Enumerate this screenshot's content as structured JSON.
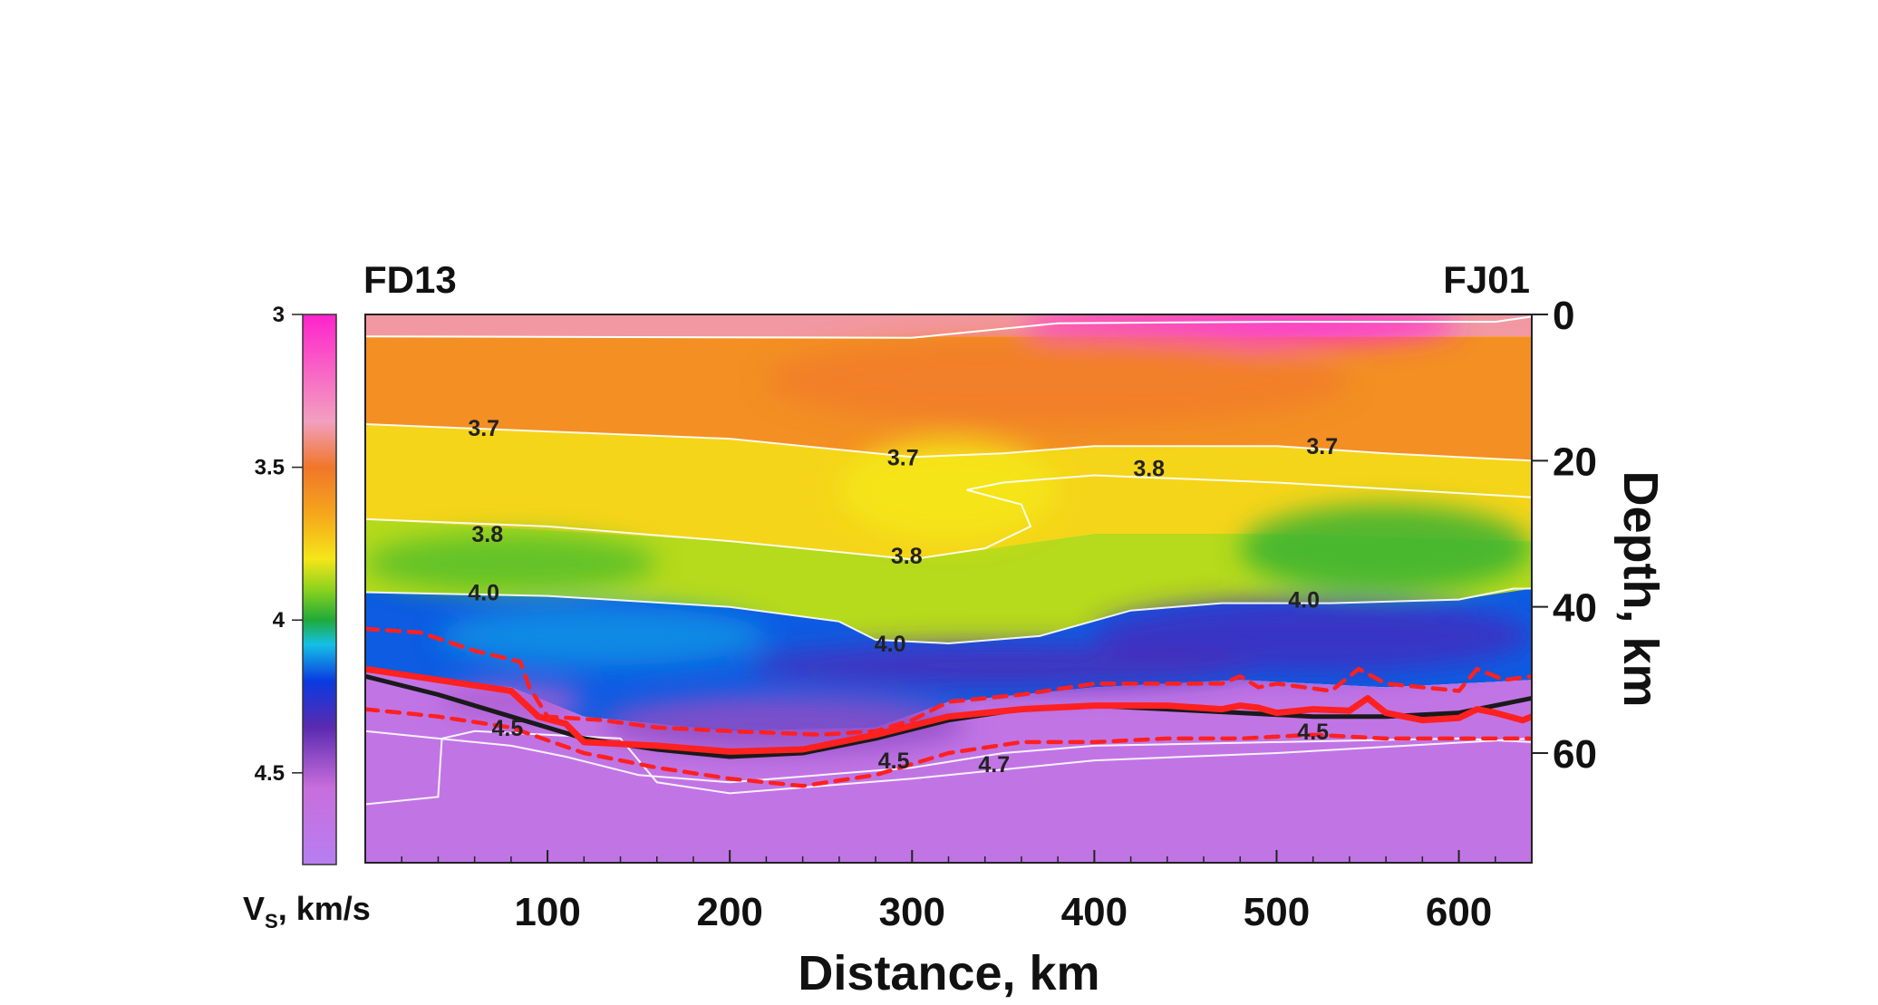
{
  "chart_data": {
    "type": "heatmap",
    "title_left": "FD13",
    "title_right": "FJ01",
    "xlabel": "Distance, km",
    "ylabel": "Depth, km",
    "colorbar_label_main": "V",
    "colorbar_label_sub": "S",
    "colorbar_label_unit": ", km/s",
    "xlim": [
      0,
      640
    ],
    "ylim": [
      0,
      75
    ],
    "x_ticks": [
      100,
      200,
      300,
      400,
      500,
      600
    ],
    "x_tick_labels": [
      "100",
      "200",
      "300",
      "400",
      "500",
      "600"
    ],
    "y_ticks": [
      0,
      20,
      40,
      60
    ],
    "y_tick_labels": [
      "0",
      "20",
      "40",
      "60"
    ],
    "colorbar_range": [
      3.0,
      4.8
    ],
    "colorbar_ticks": [
      3,
      3.5,
      4,
      4.5
    ],
    "colorbar_tick_labels": [
      "3",
      "3.5",
      "4",
      "4.5"
    ],
    "colorscale": [
      {
        "v": 3.0,
        "color": "#ff22cc"
      },
      {
        "v": 3.35,
        "color": "#f2a0c0"
      },
      {
        "v": 3.5,
        "color": "#f0762a"
      },
      {
        "v": 3.65,
        "color": "#f5a51c"
      },
      {
        "v": 3.8,
        "color": "#f5e619"
      },
      {
        "v": 3.9,
        "color": "#8cd21e"
      },
      {
        "v": 4.0,
        "color": "#1faa3a"
      },
      {
        "v": 4.08,
        "color": "#15c0e6"
      },
      {
        "v": 4.2,
        "color": "#0a3ae0"
      },
      {
        "v": 4.35,
        "color": "#5a2ab0"
      },
      {
        "v": 4.55,
        "color": "#c86edc"
      },
      {
        "v": 4.8,
        "color": "#b77ef0"
      }
    ],
    "contours": [
      {
        "value": "3.7",
        "points": [
          [
            0,
            15
          ],
          [
            100,
            16
          ],
          [
            200,
            17
          ],
          [
            300,
            19.5
          ],
          [
            350,
            19
          ],
          [
            400,
            18
          ],
          [
            450,
            18
          ],
          [
            500,
            18
          ],
          [
            560,
            19
          ],
          [
            640,
            20
          ]
        ]
      },
      {
        "value": "3.8",
        "points": [
          [
            0,
            28
          ],
          [
            100,
            29
          ],
          [
            200,
            31
          ],
          [
            300,
            33.5
          ],
          [
            340,
            32
          ],
          [
            365,
            29
          ],
          [
            360,
            26
          ],
          [
            330,
            24
          ],
          [
            350,
            23
          ],
          [
            400,
            22
          ],
          [
            500,
            23
          ],
          [
            640,
            25
          ]
        ]
      },
      {
        "value": "4.0",
        "points": [
          [
            0,
            38
          ],
          [
            100,
            38.5
          ],
          [
            200,
            40
          ],
          [
            260,
            42
          ],
          [
            280,
            44.5
          ],
          [
            320,
            45
          ],
          [
            370,
            44
          ],
          [
            420,
            40.5
          ],
          [
            470,
            39.5
          ],
          [
            530,
            39.5
          ],
          [
            600,
            39
          ],
          [
            630,
            37.5
          ],
          [
            640,
            37.5
          ]
        ]
      },
      {
        "value": "4.5",
        "points": [
          [
            0,
            57
          ],
          [
            40,
            58
          ],
          [
            80,
            59
          ],
          [
            110,
            60.5
          ],
          [
            150,
            63
          ],
          [
            200,
            64
          ],
          [
            300,
            62
          ],
          [
            350,
            60
          ],
          [
            400,
            59
          ],
          [
            500,
            58.5
          ],
          [
            600,
            58
          ],
          [
            640,
            58.5
          ]
        ]
      },
      {
        "value": "4.7",
        "points": [
          [
            0,
            67
          ],
          [
            40,
            66
          ],
          [
            42,
            58
          ],
          [
            60,
            57
          ],
          [
            140,
            58
          ],
          [
            160,
            64
          ],
          [
            200,
            65.5
          ],
          [
            300,
            63.5
          ],
          [
            400,
            61
          ],
          [
            500,
            60
          ],
          [
            640,
            58
          ]
        ]
      }
    ],
    "contour_labels": [
      {
        "text": "3.7",
        "x": 65,
        "y": 15.5
      },
      {
        "text": "3.7",
        "x": 295,
        "y": 19.5
      },
      {
        "text": "3.8",
        "x": 430,
        "y": 21
      },
      {
        "text": "3.7",
        "x": 525,
        "y": 18
      },
      {
        "text": "3.8",
        "x": 67,
        "y": 30
      },
      {
        "text": "3.8",
        "x": 297,
        "y": 33
      },
      {
        "text": "4.0",
        "x": 65,
        "y": 38
      },
      {
        "text": "4.0",
        "x": 288,
        "y": 45
      },
      {
        "text": "4.0",
        "x": 515,
        "y": 39
      },
      {
        "text": "4.5",
        "x": 78,
        "y": 56.5
      },
      {
        "text": "4.5",
        "x": 290,
        "y": 61
      },
      {
        "text": "4.7",
        "x": 345,
        "y": 61.5
      },
      {
        "text": "4.5",
        "x": 520,
        "y": 57
      }
    ],
    "series": [
      {
        "name": "moho-black",
        "color": "#1a1a1a",
        "style": "solid",
        "x": [
          0,
          40,
          80,
          120,
          160,
          200,
          240,
          280,
          320,
          360,
          400,
          440,
          480,
          520,
          560,
          600,
          640
        ],
        "y": [
          49.5,
          52,
          55,
          58,
          59.5,
          60.5,
          60,
          58,
          55.5,
          54,
          53.5,
          54,
          54.5,
          55,
          55,
          54.5,
          52.5
        ]
      },
      {
        "name": "moho-red",
        "color": "#ff2020",
        "style": "solid",
        "x": [
          0,
          40,
          80,
          95,
          110,
          120,
          160,
          200,
          240,
          280,
          320,
          360,
          400,
          440,
          470,
          480,
          490,
          500,
          520,
          540,
          550,
          560,
          580,
          600,
          610,
          620,
          635,
          640
        ],
        "y": [
          48.5,
          50,
          51.5,
          55,
          56,
          58.5,
          59,
          59.8,
          59.5,
          57.5,
          55,
          54,
          53.5,
          53.5,
          54,
          53.5,
          53.8,
          54.5,
          54,
          54.2,
          52.5,
          54.5,
          55.5,
          55.2,
          54,
          54.5,
          55.5,
          55
        ]
      },
      {
        "name": "moho-red-upper",
        "color": "#ff2020",
        "style": "dashed",
        "x": [
          0,
          30,
          60,
          85,
          90,
          100,
          130,
          160,
          200,
          250,
          280,
          300,
          320,
          340,
          360,
          400,
          440,
          460,
          470,
          480,
          490,
          500,
          530,
          545,
          560,
          580,
          600,
          610,
          625,
          640
        ],
        "y": [
          43,
          43.5,
          46,
          47.5,
          51,
          55,
          55.5,
          56.5,
          57,
          57.5,
          57,
          55.5,
          53,
          52.5,
          52,
          50.5,
          50.5,
          50.5,
          50.5,
          49.5,
          51,
          50.5,
          51.5,
          48.5,
          50.5,
          51,
          51.5,
          48.5,
          50,
          49.5
        ]
      },
      {
        "name": "moho-red-lower",
        "color": "#ff2020",
        "style": "dashed",
        "x": [
          0,
          40,
          80,
          120,
          160,
          200,
          240,
          280,
          320,
          360,
          400,
          440,
          480,
          520,
          560,
          600,
          640
        ],
        "y": [
          54,
          55,
          56.5,
          60,
          62,
          63.5,
          64.5,
          63,
          60,
          58.5,
          58.5,
          58,
          58,
          57.5,
          58,
          58,
          58
        ]
      }
    ]
  }
}
